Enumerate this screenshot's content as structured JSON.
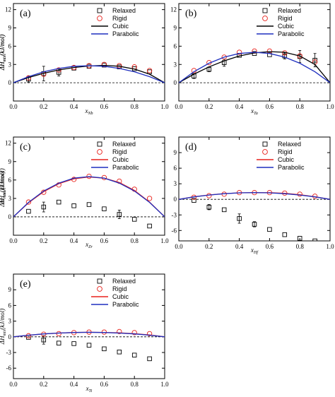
{
  "chart_data": [
    {
      "type": "scatter",
      "panel_label": "(a)",
      "xlabel": "x",
      "xlabel_sub": "Nb",
      "ylabel": "ΔH",
      "ylabel_sub": "mix",
      "ylabel_unit": "(kJ/mol)",
      "xlim": [
        0.0,
        1.0
      ],
      "ylim": [
        -3,
        13
      ],
      "xticks": [
        0.0,
        0.2,
        0.4,
        0.6,
        0.8,
        1.0
      ],
      "yticks": [
        0,
        3,
        6,
        9,
        12
      ],
      "xtick_labels": [
        "0.0",
        "0.2",
        "0.4",
        "0.6",
        "0.8",
        "1.0"
      ],
      "ytick_labels": [
        "0",
        "3",
        "6",
        "9",
        "12"
      ],
      "legend_position": "top-right",
      "series": [
        {
          "name": "Relaxed",
          "kind": "points",
          "marker": "square",
          "color": "#000000",
          "x": [
            0.1,
            0.2,
            0.3,
            0.4,
            0.5,
            0.6,
            0.7,
            0.8,
            0.9
          ],
          "y": [
            0.6,
            1.5,
            1.7,
            2.4,
            2.7,
            2.9,
            2.6,
            2.3,
            1.8
          ],
          "err": [
            0.5,
            1.2,
            0.6,
            0.3,
            0.3,
            0.3,
            0.3,
            0.3,
            0.3
          ]
        },
        {
          "name": "Rigid",
          "kind": "points",
          "marker": "circle",
          "color": "#e8211b",
          "x": [
            0.1,
            0.2,
            0.3,
            0.4,
            0.5,
            0.6,
            0.7,
            0.8,
            0.9
          ],
          "y": [
            0.8,
            1.4,
            2.1,
            2.5,
            2.8,
            3.0,
            2.8,
            2.6,
            2.0
          ]
        },
        {
          "name": "Cubic",
          "kind": "line",
          "color": "#000000",
          "x": [
            0.0,
            0.1,
            0.2,
            0.3,
            0.4,
            0.5,
            0.6,
            0.7,
            0.8,
            0.9,
            1.0
          ],
          "y": [
            0.0,
            0.85,
            1.55,
            2.1,
            2.5,
            2.75,
            2.85,
            2.7,
            2.25,
            1.4,
            0.0
          ]
        },
        {
          "name": "Parabolic",
          "kind": "line",
          "color": "#1f2fbf",
          "x": [
            0.0,
            0.1,
            0.2,
            0.3,
            0.4,
            0.5,
            0.6,
            0.7,
            0.8,
            0.9,
            1.0
          ],
          "y": [
            0.0,
            1.0,
            1.8,
            2.35,
            2.7,
            2.8,
            2.7,
            2.35,
            1.8,
            1.0,
            0.0
          ]
        }
      ]
    },
    {
      "type": "scatter",
      "panel_label": "(b)",
      "xlabel": "x",
      "xlabel_sub": "Ta",
      "ylabel": "ΔH",
      "ylabel_sub": "mix",
      "ylabel_unit": "(kJ/mol)",
      "xlim": [
        0.0,
        1.0
      ],
      "ylim": [
        -3,
        13
      ],
      "xticks": [
        0.0,
        0.2,
        0.4,
        0.6,
        0.8,
        1.0
      ],
      "yticks": [
        0,
        3,
        6,
        9,
        12
      ],
      "xtick_labels": [
        "0.0",
        "0.2",
        "0.4",
        "0.6",
        "0.8",
        "1.0"
      ],
      "ytick_labels": [
        "0",
        "3",
        "6",
        "9",
        "12"
      ],
      "legend_position": "top-right",
      "series": [
        {
          "name": "Relaxed",
          "kind": "points",
          "marker": "square",
          "color": "#000000",
          "x": [
            0.1,
            0.2,
            0.3,
            0.4,
            0.5,
            0.6,
            0.7,
            0.8,
            0.9
          ],
          "y": [
            1.1,
            2.2,
            3.3,
            4.5,
            4.8,
            4.6,
            4.4,
            4.3,
            3.7
          ],
          "err": [
            0.4,
            0.4,
            0.6,
            0.3,
            0.3,
            0.3,
            0.5,
            1.0,
            1.1
          ]
        },
        {
          "name": "Rigid",
          "kind": "points",
          "marker": "circle",
          "color": "#e8211b",
          "x": [
            0.1,
            0.2,
            0.3,
            0.4,
            0.5,
            0.6,
            0.7,
            0.8,
            0.9
          ],
          "y": [
            2.0,
            3.3,
            4.2,
            5.0,
            5.2,
            5.2,
            4.9,
            4.4,
            3.4
          ]
        },
        {
          "name": "Cubic",
          "kind": "line",
          "color": "#000000",
          "x": [
            0.0,
            0.1,
            0.2,
            0.3,
            0.4,
            0.5,
            0.6,
            0.7,
            0.8,
            0.9,
            1.0
          ],
          "y": [
            0.0,
            1.4,
            2.6,
            3.6,
            4.4,
            4.9,
            5.1,
            5.0,
            4.4,
            3.0,
            0.0
          ]
        },
        {
          "name": "Parabolic",
          "kind": "line",
          "color": "#1f2fbf",
          "x": [
            0.0,
            0.1,
            0.2,
            0.3,
            0.4,
            0.5,
            0.6,
            0.7,
            0.8,
            0.9,
            1.0
          ],
          "y": [
            0.0,
            1.8,
            3.2,
            4.2,
            4.8,
            5.0,
            4.8,
            4.2,
            3.2,
            1.8,
            0.0
          ]
        }
      ]
    },
    {
      "type": "scatter",
      "panel_label": "(c)",
      "xlabel": "x",
      "xlabel_sub": "Zr",
      "ylabel": "ΔH",
      "ylabel_sub": "mix",
      "ylabel_unit": "(kJ/mol)",
      "xlim": [
        0.0,
        1.0
      ],
      "ylim": [
        -3,
        13
      ],
      "xticks": [
        0.0,
        0.2,
        0.4,
        0.6,
        0.8,
        1.0
      ],
      "yticks": [
        0,
        3,
        6,
        9,
        12
      ],
      "xtick_labels": [
        "0.0",
        "0.2",
        "0.4",
        "0.6",
        "0.8",
        "1.0"
      ],
      "ytick_labels": [
        "0",
        "3",
        "6",
        "9",
        "12"
      ],
      "legend_position": "top-right",
      "series": [
        {
          "name": "Relaxed",
          "kind": "points",
          "marker": "square",
          "color": "#000000",
          "x": [
            0.1,
            0.2,
            0.3,
            0.4,
            0.5,
            0.6,
            0.7,
            0.8,
            0.9
          ],
          "y": [
            0.9,
            1.6,
            2.4,
            1.8,
            2.0,
            1.3,
            0.4,
            -0.4,
            -1.5
          ],
          "err": [
            0.3,
            0.8,
            0.3,
            0.3,
            0.3,
            0.3,
            0.7,
            0.3,
            0.3
          ]
        },
        {
          "name": "Rigid",
          "kind": "points",
          "marker": "circle",
          "color": "#e8211b",
          "x": [
            0.1,
            0.2,
            0.3,
            0.4,
            0.5,
            0.6,
            0.7,
            0.8,
            0.9
          ],
          "y": [
            2.4,
            4.0,
            5.2,
            6.1,
            6.6,
            6.4,
            5.8,
            4.5,
            3.0
          ]
        },
        {
          "name": "Cubic",
          "kind": "line",
          "color": "#e8211b",
          "x": [
            0.0,
            0.1,
            0.2,
            0.3,
            0.4,
            0.5,
            0.6,
            0.7,
            0.8,
            0.9,
            1.0
          ],
          "y": [
            0.0,
            2.3,
            4.1,
            5.4,
            6.2,
            6.5,
            6.3,
            5.6,
            4.3,
            2.4,
            0.0
          ]
        },
        {
          "name": "Parabolic",
          "kind": "line",
          "color": "#1f2fbf",
          "x": [
            0.0,
            0.1,
            0.2,
            0.3,
            0.4,
            0.5,
            0.6,
            0.7,
            0.8,
            0.9,
            1.0
          ],
          "y": [
            0.0,
            2.35,
            4.2,
            5.5,
            6.3,
            6.55,
            6.3,
            5.5,
            4.2,
            2.35,
            0.0
          ]
        }
      ]
    },
    {
      "type": "scatter",
      "panel_label": "(d)",
      "xlabel": "x",
      "xlabel_sub": "Hf",
      "ylabel": "ΔH",
      "ylabel_sub": "mix",
      "ylabel_unit": "(kJ/mol)",
      "xlim": [
        0.0,
        1.0
      ],
      "ylim": [
        -8,
        12
      ],
      "xticks": [
        0.0,
        0.2,
        0.4,
        0.6,
        0.8,
        1.0
      ],
      "yticks": [
        -6,
        -3,
        0,
        3,
        6,
        9
      ],
      "xtick_labels": [
        "0.0",
        "0.2",
        "0.4",
        "0.6",
        "0.8",
        "1.0"
      ],
      "ytick_labels": [
        "-6",
        "-3",
        "0",
        "3",
        "6",
        "9"
      ],
      "legend_position": "top-right",
      "series": [
        {
          "name": "Relaxed",
          "kind": "points",
          "marker": "square",
          "color": "#000000",
          "x": [
            0.1,
            0.2,
            0.3,
            0.4,
            0.5,
            0.6,
            0.7,
            0.8,
            0.9
          ],
          "y": [
            -0.2,
            -1.5,
            -2.0,
            -3.7,
            -4.8,
            -5.8,
            -6.8,
            -7.5,
            -8.0
          ],
          "err": [
            0.3,
            0.5,
            0.3,
            0.9,
            0.5,
            0.3,
            0.3,
            0.3,
            0.3
          ]
        },
        {
          "name": "Rigid",
          "kind": "points",
          "marker": "circle",
          "color": "#e8211b",
          "x": [
            0.1,
            0.2,
            0.3,
            0.4,
            0.5,
            0.6,
            0.7,
            0.8,
            0.9
          ],
          "y": [
            0.4,
            0.7,
            1.0,
            1.3,
            1.3,
            1.3,
            1.2,
            1.0,
            0.6
          ]
        },
        {
          "name": "Cubic",
          "kind": "line",
          "color": "#e8211b",
          "x": [
            0.0,
            0.1,
            0.2,
            0.3,
            0.4,
            0.5,
            0.6,
            0.7,
            0.8,
            0.9,
            1.0
          ],
          "y": [
            0.0,
            0.5,
            0.85,
            1.1,
            1.25,
            1.3,
            1.28,
            1.15,
            0.9,
            0.5,
            0.0
          ]
        },
        {
          "name": "Parabolic",
          "kind": "line",
          "color": "#1f2fbf",
          "x": [
            0.0,
            0.1,
            0.2,
            0.3,
            0.4,
            0.5,
            0.6,
            0.7,
            0.8,
            0.9,
            1.0
          ],
          "y": [
            0.0,
            0.47,
            0.83,
            1.09,
            1.25,
            1.3,
            1.25,
            1.09,
            0.83,
            0.47,
            0.0
          ]
        }
      ]
    },
    {
      "type": "scatter",
      "panel_label": "(e)",
      "xlabel": "x",
      "xlabel_sub": "Ti",
      "ylabel": "ΔH",
      "ylabel_sub": "mix",
      "ylabel_unit": "(kJ/mol)",
      "xlim": [
        0.0,
        1.0
      ],
      "ylim": [
        -8,
        12
      ],
      "xticks": [
        0.0,
        0.2,
        0.4,
        0.6,
        0.8,
        1.0
      ],
      "yticks": [
        -6,
        -3,
        0,
        3,
        6,
        9
      ],
      "xtick_labels": [
        "0.0",
        "0.2",
        "0.4",
        "0.6",
        "0.8",
        "1.0"
      ],
      "ytick_labels": [
        "-6",
        "-3",
        "0",
        "3",
        "6",
        "9"
      ],
      "legend_position": "top-right",
      "series": [
        {
          "name": "Relaxed",
          "kind": "points",
          "marker": "square",
          "color": "#000000",
          "x": [
            0.1,
            0.2,
            0.3,
            0.4,
            0.5,
            0.6,
            0.7,
            0.8,
            0.9
          ],
          "y": [
            -0.1,
            -0.6,
            -1.2,
            -1.3,
            -1.6,
            -2.3,
            -2.9,
            -3.5,
            -4.2
          ],
          "err": [
            0.3,
            0.8,
            0.3,
            0.3,
            0.3,
            0.3,
            0.3,
            0.3,
            0.3
          ]
        },
        {
          "name": "Rigid",
          "kind": "points",
          "marker": "circle",
          "color": "#e8211b",
          "x": [
            0.1,
            0.2,
            0.3,
            0.4,
            0.5,
            0.6,
            0.7,
            0.8,
            0.9
          ],
          "y": [
            0.2,
            0.5,
            0.6,
            0.8,
            0.9,
            0.9,
            1.0,
            0.8,
            0.6
          ]
        },
        {
          "name": "Cubic",
          "kind": "line",
          "color": "#e8211b",
          "x": [
            0.0,
            0.1,
            0.2,
            0.3,
            0.4,
            0.5,
            0.6,
            0.7,
            0.8,
            0.9,
            1.0
          ],
          "y": [
            0.0,
            0.3,
            0.55,
            0.72,
            0.82,
            0.86,
            0.84,
            0.76,
            0.6,
            0.35,
            0.0
          ]
        },
        {
          "name": "Parabolic",
          "kind": "line",
          "color": "#1f2fbf",
          "x": [
            0.0,
            0.1,
            0.2,
            0.3,
            0.4,
            0.5,
            0.6,
            0.7,
            0.8,
            0.9,
            1.0
          ],
          "y": [
            0.0,
            0.31,
            0.55,
            0.72,
            0.82,
            0.86,
            0.82,
            0.72,
            0.55,
            0.31,
            0.0
          ]
        }
      ]
    }
  ]
}
